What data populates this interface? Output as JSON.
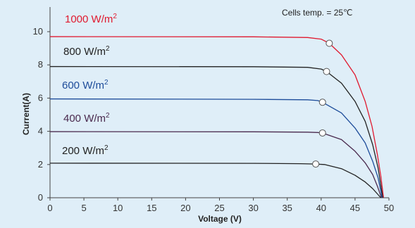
{
  "chart_data": {
    "type": "line",
    "title": "",
    "annotation": "Cells temp. = 25℃",
    "xlabel": "Voltage  (V)",
    "ylabel": "Current(A)",
    "xlim": [
      0,
      50
    ],
    "ylim": [
      0,
      11
    ],
    "xticks": [
      0,
      5,
      10,
      15,
      20,
      25,
      30,
      35,
      40,
      45,
      50
    ],
    "yticks": [
      0,
      2,
      4,
      6,
      8,
      10
    ],
    "grid": false,
    "series": [
      {
        "base": "1000 W/m",
        "sup": "2",
        "color": "#e0192f",
        "points": [
          [
            0,
            9.7
          ],
          [
            30,
            9.69
          ],
          [
            38,
            9.65
          ],
          [
            40,
            9.55
          ],
          [
            41.2,
            9.3
          ],
          [
            43,
            8.6
          ],
          [
            45,
            7.4
          ],
          [
            46.5,
            5.8
          ],
          [
            47.5,
            4.3
          ],
          [
            48.3,
            2.6
          ],
          [
            48.8,
            1.3
          ],
          [
            49.2,
            0
          ]
        ],
        "mpp": [
          41.2,
          9.3
        ]
      },
      {
        "base": "800 W/m",
        "sup": "2",
        "color": "#222222",
        "points": [
          [
            0,
            7.9
          ],
          [
            30,
            7.89
          ],
          [
            38,
            7.85
          ],
          [
            40,
            7.75
          ],
          [
            40.8,
            7.6
          ],
          [
            43,
            6.9
          ],
          [
            45,
            5.8
          ],
          [
            46.5,
            4.6
          ],
          [
            47.6,
            3.2
          ],
          [
            48.4,
            1.8
          ],
          [
            49.1,
            0
          ]
        ],
        "mpp": [
          40.8,
          7.6
        ]
      },
      {
        "base": "600 W/m",
        "sup": "2",
        "color": "#1d4c9a",
        "points": [
          [
            0,
            5.95
          ],
          [
            30,
            5.93
          ],
          [
            38,
            5.9
          ],
          [
            39.5,
            5.85
          ],
          [
            40.2,
            5.75
          ],
          [
            43,
            5.1
          ],
          [
            45,
            4.2
          ],
          [
            46.5,
            3.3
          ],
          [
            47.6,
            2.2
          ],
          [
            48.4,
            1.2
          ],
          [
            49.0,
            0
          ]
        ],
        "mpp": [
          40.2,
          5.75
        ]
      },
      {
        "base": "400 W/m",
        "sup": "2",
        "color": "#4a2a4e",
        "points": [
          [
            0,
            3.98
          ],
          [
            30,
            3.97
          ],
          [
            38,
            3.95
          ],
          [
            39.5,
            3.93
          ],
          [
            40.2,
            3.9
          ],
          [
            43,
            3.5
          ],
          [
            45,
            2.8
          ],
          [
            46.5,
            2.1
          ],
          [
            47.6,
            1.4
          ],
          [
            48.3,
            0.7
          ],
          [
            48.9,
            0
          ]
        ],
        "mpp": [
          40.2,
          3.9
        ]
      },
      {
        "base": "200 W/m",
        "sup": "2",
        "color": "#222222",
        "points": [
          [
            0,
            2.08
          ],
          [
            30,
            2.07
          ],
          [
            37,
            2.05
          ],
          [
            39.2,
            2.03
          ],
          [
            40.5,
            2.0
          ],
          [
            43,
            1.75
          ],
          [
            45,
            1.35
          ],
          [
            46.5,
            0.95
          ],
          [
            47.6,
            0.55
          ],
          [
            48.8,
            0
          ]
        ],
        "mpp": [
          39.2,
          2.03
        ]
      }
    ]
  }
}
